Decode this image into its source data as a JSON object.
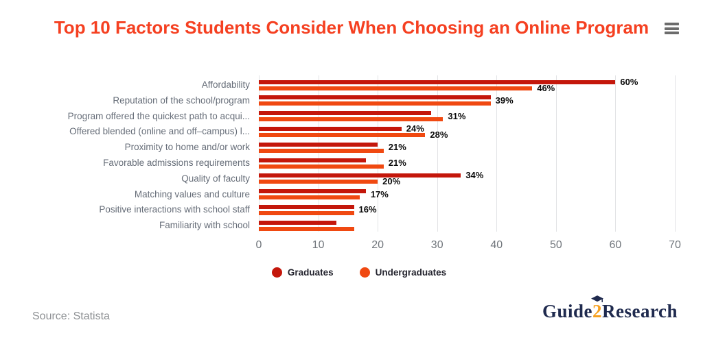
{
  "header": {
    "title": "Top 10 Factors Students Consider When Choosing an Online Program"
  },
  "chart_data": {
    "type": "bar",
    "orientation": "horizontal",
    "title": "Top 10 Factors Students Consider When Choosing an Online Program",
    "categories": [
      "Affordability",
      "Reputation of the school/program",
      "Program offered the quickest path to acqui...",
      "Offered blended (online and off–campus) l...",
      "Proximity to home and/or work",
      "Favorable admissions requirements",
      "Quality of faculty",
      "Matching values and culture",
      "Positive interactions with school staff",
      "Familiarity with school"
    ],
    "series": [
      {
        "name": "Graduates",
        "color": "#c4170b",
        "values": [
          60,
          39,
          29,
          24,
          20,
          18,
          34,
          18,
          16,
          13
        ]
      },
      {
        "name": "Undergraduates",
        "color": "#f04911",
        "values": [
          46,
          39,
          31,
          28,
          21,
          21,
          20,
          17,
          16,
          16
        ]
      }
    ],
    "value_labels": [
      {
        "graduates": "60%",
        "undergraduates": "46%"
      },
      {
        "single": "39%"
      },
      {
        "single": "31%"
      },
      {
        "graduates": "24%",
        "undergraduates": "28%"
      },
      {
        "single": "21%"
      },
      {
        "single": "21%"
      },
      {
        "graduates": "34%",
        "undergraduates": "20%"
      },
      {
        "single": "17%"
      },
      {
        "single": "16%"
      },
      {}
    ],
    "xlabel": "",
    "ylabel": "",
    "xlim": [
      0,
      70
    ],
    "x_ticks": [
      "0",
      "10",
      "20",
      "30",
      "40",
      "50",
      "60",
      "70"
    ],
    "grid": true,
    "legend_position": "bottom"
  },
  "legend": {
    "items": [
      {
        "label": "Graduates",
        "color": "#c4170b"
      },
      {
        "label": "Undergraduates",
        "color": "#f04911"
      }
    ]
  },
  "footer": {
    "source": "Source: Statista",
    "logo": {
      "part1": "Guide",
      "part2": "2",
      "part3": "Research"
    }
  },
  "colors": {
    "title": "#f54021",
    "graduates_bar": "#c4170b",
    "undergraduates_bar": "#f04911",
    "category_text": "#666d78",
    "tick_text": "#71767c",
    "gridline": "#e2e3e5",
    "value_label_text": "#0a0a0a",
    "legend_text": "#25252f",
    "source_text": "#8d9093",
    "logo_navy": "#1f2a4e",
    "logo_orange": "#f6a01f",
    "menu_icon": "#6c6c6c"
  }
}
